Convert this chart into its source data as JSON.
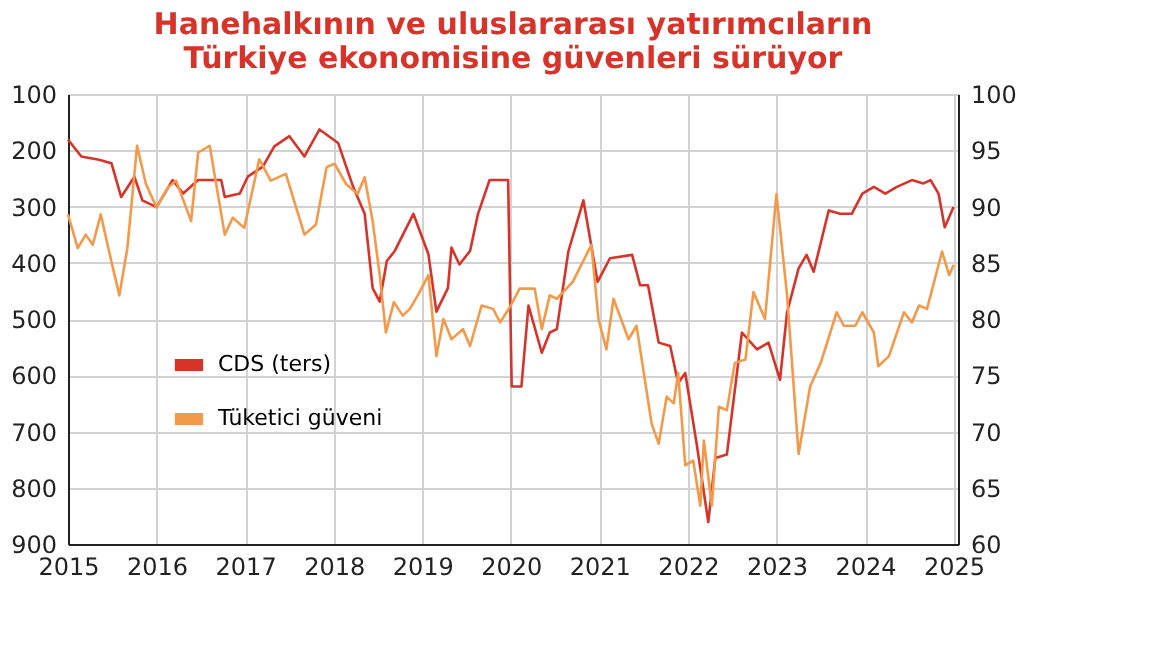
{
  "chart_data": {
    "type": "line",
    "title": "Hanehalkının ve uluslararası yatırımcıların Türkiye ekonomisine güvenleri sürüyor",
    "xlim": [
      2015,
      2025.05
    ],
    "xticks": [
      2015,
      2016,
      2017,
      2018,
      2019,
      2020,
      2021,
      2022,
      2023,
      2024,
      2025
    ],
    "ylim": [
      900,
      100
    ],
    "yticks": [
      100,
      200,
      300,
      400,
      500,
      600,
      700,
      800,
      900
    ],
    "y2lim": [
      60,
      100
    ],
    "y2ticks": [
      60,
      65,
      70,
      75,
      80,
      85,
      90,
      95,
      100
    ],
    "grid": true,
    "legend": "bottom left",
    "line_style": "solid",
    "marker": "none",
    "series": [
      {
        "name": "CDS (ters)",
        "color": "#d6332a",
        "x": [
          2015.0,
          2015.15,
          2015.35,
          2015.49,
          2015.6,
          2015.75,
          2015.84,
          2016.0,
          2016.18,
          2016.3,
          2016.47,
          2016.73,
          2016.77,
          2016.94,
          2017.03,
          2017.2,
          2017.33,
          2017.5,
          2017.67,
          2017.84,
          2018.05,
          2018.22,
          2018.35,
          2018.44,
          2018.52,
          2018.6,
          2018.69,
          2018.9,
          2019.07,
          2019.16,
          2019.29,
          2019.33,
          2019.42,
          2019.54,
          2019.63,
          2019.76,
          2019.97,
          2020.01,
          2020.12,
          2020.2,
          2020.35,
          2020.44,
          2020.52,
          2020.65,
          2020.82,
          2020.98,
          2021.12,
          2021.37,
          2021.46,
          2021.55,
          2021.67,
          2021.8,
          2021.89,
          2021.97,
          2022.1,
          2022.23,
          2022.31,
          2022.44,
          2022.61,
          2022.78,
          2022.91,
          2023.04,
          2023.12,
          2023.25,
          2023.34,
          2023.42,
          2023.59,
          2023.72,
          2023.85,
          2023.97,
          2024.1,
          2024.23,
          2024.36,
          2024.53,
          2024.66,
          2024.74,
          2024.83,
          2024.9,
          2025.0
        ],
        "values": [
          181,
          211,
          217,
          223,
          283,
          247,
          289,
          301,
          253,
          277,
          253,
          253,
          283,
          277,
          247,
          229,
          193,
          175,
          211,
          163,
          187,
          265,
          313,
          445,
          469,
          397,
          379,
          313,
          385,
          487,
          445,
          373,
          403,
          379,
          313,
          253,
          253,
          620,
          620,
          476,
          560,
          524,
          518,
          380,
          289,
          434,
          392,
          386,
          440,
          440,
          542,
          548,
          614,
          596,
          723,
          861,
          747,
          741,
          524,
          554,
          542,
          608,
          488,
          410,
          386,
          416,
          307,
          313,
          313,
          277,
          265,
          277,
          265,
          253,
          259,
          253,
          277,
          337,
          301
        ]
      },
      {
        "name": "Tüketici güveni",
        "color": "#f39a4a",
        "axis": "y2",
        "x": [
          2015.0,
          2015.11,
          2015.2,
          2015.28,
          2015.37,
          2015.49,
          2015.58,
          2015.67,
          2015.78,
          2015.88,
          2016.0,
          2016.13,
          2016.22,
          2016.39,
          2016.47,
          2016.6,
          2016.77,
          2016.86,
          2016.99,
          2017.16,
          2017.29,
          2017.46,
          2017.67,
          2017.8,
          2017.92,
          2018.01,
          2018.14,
          2018.27,
          2018.35,
          2018.44,
          2018.52,
          2018.59,
          2018.68,
          2018.78,
          2018.86,
          2018.95,
          2019.07,
          2019.16,
          2019.24,
          2019.33,
          2019.46,
          2019.54,
          2019.67,
          2019.8,
          2019.88,
          2020.0,
          2020.1,
          2020.27,
          2020.35,
          2020.44,
          2020.52,
          2020.7,
          2020.91,
          2020.99,
          2021.08,
          2021.16,
          2021.33,
          2021.42,
          2021.59,
          2021.67,
          2021.76,
          2021.84,
          2021.89,
          2021.97,
          2022.06,
          2022.14,
          2022.18,
          2022.27,
          2022.35,
          2022.44,
          2022.53,
          2022.65,
          2022.74,
          2022.87,
          2023.0,
          2023.12,
          2023.25,
          2023.38,
          2023.5,
          2023.68,
          2023.76,
          2023.89,
          2023.97,
          2024.1,
          2024.15,
          2024.27,
          2024.44,
          2024.53,
          2024.61,
          2024.7,
          2024.87,
          2024.95,
          2025.0
        ],
        "values": [
          89.3,
          86.3,
          87.5,
          86.6,
          89.3,
          85.1,
          82.1,
          86.3,
          95.4,
          92.0,
          89.9,
          91.7,
          92.3,
          88.7,
          94.8,
          95.4,
          87.5,
          89.0,
          88.1,
          94.2,
          92.3,
          92.9,
          87.5,
          88.4,
          93.5,
          93.8,
          92.0,
          91.1,
          92.6,
          88.7,
          83.9,
          78.8,
          81.5,
          80.3,
          80.9,
          82.1,
          83.9,
          76.7,
          80.0,
          78.2,
          79.1,
          77.6,
          81.2,
          80.9,
          79.7,
          81.2,
          82.7,
          82.7,
          79.1,
          82.1,
          81.8,
          83.3,
          86.6,
          80.0,
          77.3,
          81.8,
          78.2,
          79.4,
          70.7,
          68.9,
          73.1,
          72.5,
          75.2,
          67.0,
          67.4,
          63.4,
          69.2,
          63.4,
          72.2,
          71.9,
          76.1,
          76.4,
          82.4,
          80.0,
          91.1,
          82.1,
          68.0,
          74.0,
          76.1,
          80.6,
          79.4,
          79.4,
          80.6,
          78.8,
          75.8,
          76.7,
          80.6,
          79.7,
          81.2,
          80.9,
          86.0,
          83.9,
          84.8
        ]
      }
    ]
  }
}
